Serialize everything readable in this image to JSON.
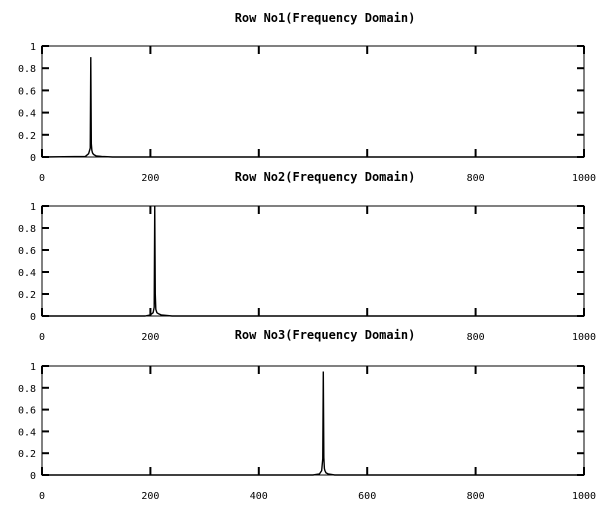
{
  "chart_data": [
    {
      "type": "line",
      "title": "Row No1(Frequency Domain)",
      "xlabel": "",
      "ylabel": "",
      "xlim": [
        0,
        1000
      ],
      "ylim": [
        0,
        1
      ],
      "xticks": [
        0,
        200,
        400,
        600,
        800,
        1000
      ],
      "xtick_labels": [
        "0",
        "200",
        "",
        "",
        "800",
        "1000"
      ],
      "yticks": [
        0,
        0.2,
        0.4,
        0.6,
        0.8,
        1
      ],
      "ytick_labels": [
        "0",
        "0.2",
        "0.4",
        "0.6",
        "0.8",
        "1"
      ],
      "grid": false,
      "series": [
        {
          "x": [
            0,
            80,
            86,
            89,
            90,
            91,
            92,
            93,
            94,
            96,
            100,
            110,
            130,
            1000
          ],
          "y": [
            0,
            0.005,
            0.03,
            0.08,
            0.9,
            0.12,
            0.06,
            0.04,
            0.03,
            0.02,
            0.01,
            0.005,
            0,
            0
          ]
        }
      ]
    },
    {
      "type": "line",
      "title": "Row No2(Frequency Domain)",
      "xlabel": "",
      "ylabel": "",
      "xlim": [
        0,
        1000
      ],
      "ylim": [
        0,
        1
      ],
      "xticks": [
        0,
        200,
        400,
        600,
        800,
        1000
      ],
      "xtick_labels": [
        "0",
        "200",
        "",
        "",
        "800",
        "1000"
      ],
      "yticks": [
        0,
        0.2,
        0.4,
        0.6,
        0.8,
        1
      ],
      "ytick_labels": [
        "0",
        "0.2",
        "0.4",
        "0.6",
        "0.8",
        "1"
      ],
      "grid": false,
      "series": [
        {
          "x": [
            0,
            190,
            200,
            205,
            207,
            208,
            209,
            210,
            212,
            215,
            220,
            240,
            1000
          ],
          "y": [
            0,
            0,
            0.01,
            0.03,
            0.08,
            1,
            0.2,
            0.06,
            0.03,
            0.02,
            0.01,
            0,
            0
          ]
        }
      ]
    },
    {
      "type": "line",
      "title": "Row No3(Frequency Domain)",
      "xlabel": "",
      "ylabel": "",
      "xlim": [
        0,
        1000
      ],
      "ylim": [
        0,
        1
      ],
      "xticks": [
        0,
        200,
        400,
        600,
        800,
        1000
      ],
      "xtick_labels": [
        "0",
        "200",
        "400",
        "600",
        "800",
        "1000"
      ],
      "yticks": [
        0,
        0.2,
        0.4,
        0.6,
        0.8,
        1
      ],
      "ytick_labels": [
        "0",
        "0.2",
        "0.4",
        "0.6",
        "0.8",
        "1"
      ],
      "grid": false,
      "series": [
        {
          "x": [
            0,
            500,
            512,
            516,
            518,
            519,
            520,
            521,
            522,
            524,
            528,
            540,
            1000
          ],
          "y": [
            0,
            0,
            0.01,
            0.04,
            0.15,
            0.95,
            0.16,
            0.06,
            0.04,
            0.02,
            0.01,
            0,
            0
          ]
        }
      ]
    }
  ]
}
